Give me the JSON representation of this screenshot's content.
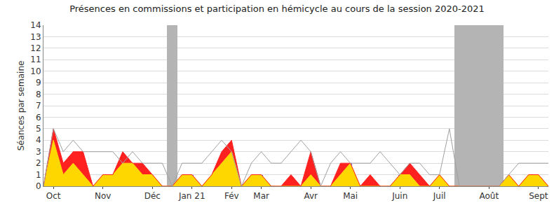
{
  "chart_data": {
    "type": "area",
    "title": "Présences en commissions et participation en hémicycle au cours de la session 2020-2021",
    "y_label": "Séances par semaine",
    "categories": [
      null,
      "Oct",
      null,
      null,
      null,
      null,
      "Nov",
      null,
      null,
      null,
      null,
      "Déc",
      null,
      null,
      null,
      "Jan 21",
      null,
      null,
      null,
      "Fév",
      null,
      null,
      "Mar",
      null,
      null,
      null,
      null,
      "Avr",
      null,
      null,
      null,
      "Mai",
      null,
      null,
      null,
      null,
      "Juin",
      null,
      null,
      null,
      "Juil",
      null,
      null,
      null,
      null,
      "Août",
      null,
      null,
      null,
      null,
      "Sept",
      null
    ],
    "series": [
      {
        "type": "bar",
        "color": "#b4b4b4",
        "values": [
          0,
          0,
          0,
          0,
          0,
          0,
          0,
          0,
          0,
          0,
          0,
          0,
          0,
          14,
          0,
          0,
          0,
          0,
          0,
          0,
          0,
          0,
          0,
          0,
          0,
          0,
          0,
          0,
          0,
          0,
          0,
          0,
          0,
          0,
          0,
          0,
          0,
          0,
          0,
          0,
          0,
          0,
          14,
          14,
          14,
          14,
          14,
          0,
          0,
          0,
          0,
          0
        ]
      },
      {
        "type": "area",
        "color": "#ffd700",
        "values": [
          0,
          4,
          1,
          2,
          1,
          0,
          1,
          1,
          2,
          2,
          1,
          1,
          0,
          0,
          1,
          1,
          0,
          1,
          2,
          3,
          0,
          1,
          1,
          0,
          0,
          0,
          0,
          1,
          0,
          0,
          1,
          2,
          0,
          0,
          0,
          0,
          1,
          1,
          0,
          0,
          1,
          0,
          0,
          0,
          0,
          0,
          0,
          1,
          0,
          1,
          1,
          0
        ]
      },
      {
        "type": "area",
        "color": "#ff2020",
        "values": [
          0,
          1,
          1,
          1,
          2,
          0,
          0,
          0,
          1,
          0,
          1,
          0,
          0,
          0,
          0,
          0,
          0,
          0,
          1,
          1,
          0,
          0,
          0,
          0,
          0,
          1,
          0,
          2,
          0,
          0,
          1,
          0,
          0,
          1,
          0,
          0,
          0,
          1,
          1,
          0,
          0,
          0,
          0,
          0,
          0,
          0,
          0,
          0,
          0,
          0,
          0,
          0
        ]
      },
      {
        "type": "line",
        "color": "#a0a0a0",
        "values": [
          0,
          5,
          3,
          4,
          3,
          3,
          3,
          3,
          2,
          3,
          2,
          2,
          2,
          0,
          2,
          2,
          2,
          3,
          4,
          3,
          0,
          2,
          3,
          2,
          2,
          3,
          4,
          3,
          0,
          2,
          3,
          2,
          2,
          2,
          3,
          2,
          1,
          2,
          2,
          1,
          1,
          5,
          0,
          0,
          0,
          0,
          0,
          1,
          2,
          2,
          2,
          2
        ]
      },
      {
        "type": "bar",
        "color": "#6a6af0",
        "marker": "thin",
        "values": [
          0,
          0,
          0,
          0,
          0,
          0,
          1,
          0,
          0,
          0,
          0,
          1,
          0,
          0,
          1,
          1,
          0,
          0,
          0,
          0,
          0,
          0,
          1,
          0,
          0,
          0,
          0,
          0,
          0,
          0,
          0,
          2,
          0,
          0,
          0,
          0,
          1,
          0,
          0,
          0,
          0,
          0,
          0,
          0,
          0,
          0,
          0,
          0,
          0,
          0,
          0,
          0
        ]
      }
    ],
    "stacked": true,
    "ylim": [
      0,
      14
    ],
    "yticks": [
      0,
      1,
      2,
      3,
      4,
      5,
      6,
      7,
      8,
      9,
      10,
      11,
      12,
      13,
      14
    ],
    "grid": true
  }
}
